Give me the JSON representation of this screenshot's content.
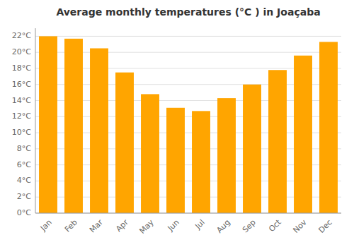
{
  "chart_data": {
    "type": "bar",
    "title": "Average monthly temperatures (°C ) in Joaçaba",
    "categories": [
      "Jan",
      "Feb",
      "Mar",
      "Apr",
      "May",
      "Jun",
      "Jul",
      "Aug",
      "Sep",
      "Oct",
      "Nov",
      "Dec"
    ],
    "values": [
      22.0,
      21.7,
      20.5,
      17.5,
      14.8,
      13.1,
      12.7,
      14.3,
      16.0,
      17.8,
      19.6,
      21.3
    ],
    "color": "#FFA500",
    "ylim": [
      0,
      23
    ],
    "yticks": [
      {
        "value": 0,
        "label": "0°C"
      },
      {
        "value": 2,
        "label": "2°C"
      },
      {
        "value": 4,
        "label": "4°C"
      },
      {
        "value": 6,
        "label": "6°C"
      },
      {
        "value": 8,
        "label": "8°C"
      },
      {
        "value": 10,
        "label": "10°C"
      },
      {
        "value": 12,
        "label": "12°C"
      },
      {
        "value": 14,
        "label": "14°C"
      },
      {
        "value": 16,
        "label": "16°C"
      },
      {
        "value": 18,
        "label": "18°C"
      },
      {
        "value": 20,
        "label": "20°C"
      },
      {
        "value": 22,
        "label": "22°C"
      }
    ],
    "grid": true
  }
}
